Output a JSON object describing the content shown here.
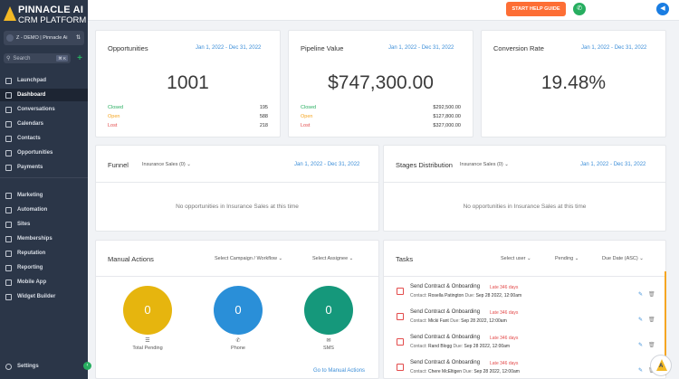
{
  "brand": {
    "line1": "PINNACLE AI",
    "line2": "CRM PLATFORM"
  },
  "account": {
    "name": "Z - DEMO | Pinnacle Ai"
  },
  "search": {
    "placeholder": "Search",
    "shortcut": "⌘ K"
  },
  "nav": [
    {
      "label": "Launchpad",
      "icon": "rocket-icon"
    },
    {
      "label": "Dashboard",
      "icon": "dashboard-icon",
      "active": true
    },
    {
      "label": "Conversations",
      "icon": "chat-icon"
    },
    {
      "label": "Calendars",
      "icon": "calendar-icon"
    },
    {
      "label": "Contacts",
      "icon": "contacts-icon"
    },
    {
      "label": "Opportunities",
      "icon": "opportunities-icon"
    },
    {
      "label": "Payments",
      "icon": "payments-icon"
    }
  ],
  "nav2": [
    {
      "label": "Marketing",
      "icon": "send-icon"
    },
    {
      "label": "Automation",
      "icon": "automation-icon"
    },
    {
      "label": "Sites",
      "icon": "sites-icon"
    },
    {
      "label": "Memberships",
      "icon": "memberships-icon"
    },
    {
      "label": "Reputation",
      "icon": "star-icon"
    },
    {
      "label": "Reporting",
      "icon": "chart-icon"
    },
    {
      "label": "Mobile App",
      "icon": "mobile-icon"
    },
    {
      "label": "Widget Builder",
      "icon": "widget-icon"
    }
  ],
  "settings": {
    "label": "Settings"
  },
  "topbar": {
    "guide_label": "START HELP GUIDE"
  },
  "opportunities": {
    "title": "Opportunities",
    "date": "Jan 1, 2022 - Dec 31, 2022",
    "total": "1001",
    "rows": [
      {
        "label": "Closed",
        "value": "195",
        "color": "#27ae60"
      },
      {
        "label": "Open",
        "value": "588",
        "color": "#f5a623"
      },
      {
        "label": "Lost",
        "value": "218",
        "color": "#e34b4b"
      }
    ]
  },
  "pipeline": {
    "title": "Pipeline Value",
    "date": "Jan 1, 2022 - Dec 31, 2022",
    "total": "$747,300.00",
    "rows": [
      {
        "label": "Closed",
        "value": "$292,500.00"
      },
      {
        "label": "Open",
        "value": "$127,800.00"
      },
      {
        "label": "Lost",
        "value": "$327,000.00"
      }
    ]
  },
  "conversion": {
    "title": "Conversion Rate",
    "date": "Jan 1, 2022 - Dec 31, 2022",
    "value": "19.48%"
  },
  "funnel": {
    "title": "Funnel",
    "filter": "Insurance Sales (0)",
    "date": "Jan 1, 2022 - Dec 31, 2022",
    "empty": "No opportunities in Insurance Sales at this time"
  },
  "stages": {
    "title": "Stages Distribution",
    "filter": "Insurance Sales (0)",
    "date": "Jan 1, 2022 - Dec 31, 2022",
    "empty": "No opportunities in Insurance Sales at this time"
  },
  "manual": {
    "title": "Manual Actions",
    "campaign_filter": "Select Campaign / Workflow",
    "assignee_filter": "Select Assignee",
    "items": [
      {
        "value": "0",
        "label": "Total Pending",
        "color": "#e6b50e",
        "icon": "list-icon"
      },
      {
        "value": "0",
        "label": "Phone",
        "color": "#2a8fd8",
        "icon": "phone-icon"
      },
      {
        "value": "0",
        "label": "SMS",
        "color": "#15987b",
        "icon": "sms-icon"
      }
    ],
    "link": "Go to Manual Actions"
  },
  "tasks": {
    "title": "Tasks",
    "user_filter": "Select user",
    "status_filter": "Pending",
    "sort_filter": "Due Date (ASC)",
    "contact_label": "Contact:",
    "due_label": "Due:",
    "items": [
      {
        "title": "Send Contract & Onboarding",
        "late": "Late 346 days",
        "contact": "Rosella Patington",
        "due": "Sep 28 2022, 12:00am"
      },
      {
        "title": "Send Contract & Onboarding",
        "late": "Late 346 days",
        "contact": "Micki Fant",
        "due": "Sep 28 2022, 12:00am"
      },
      {
        "title": "Send Contract & Onboarding",
        "late": "Late 346 days",
        "contact": "Rand Blogg",
        "due": "Sep 28 2022, 12:00am"
      },
      {
        "title": "Send Contract & Onboarding",
        "late": "Late 346 days",
        "contact": "Chere McEltigen",
        "due": "Sep 28 2022, 12:00am"
      }
    ]
  }
}
